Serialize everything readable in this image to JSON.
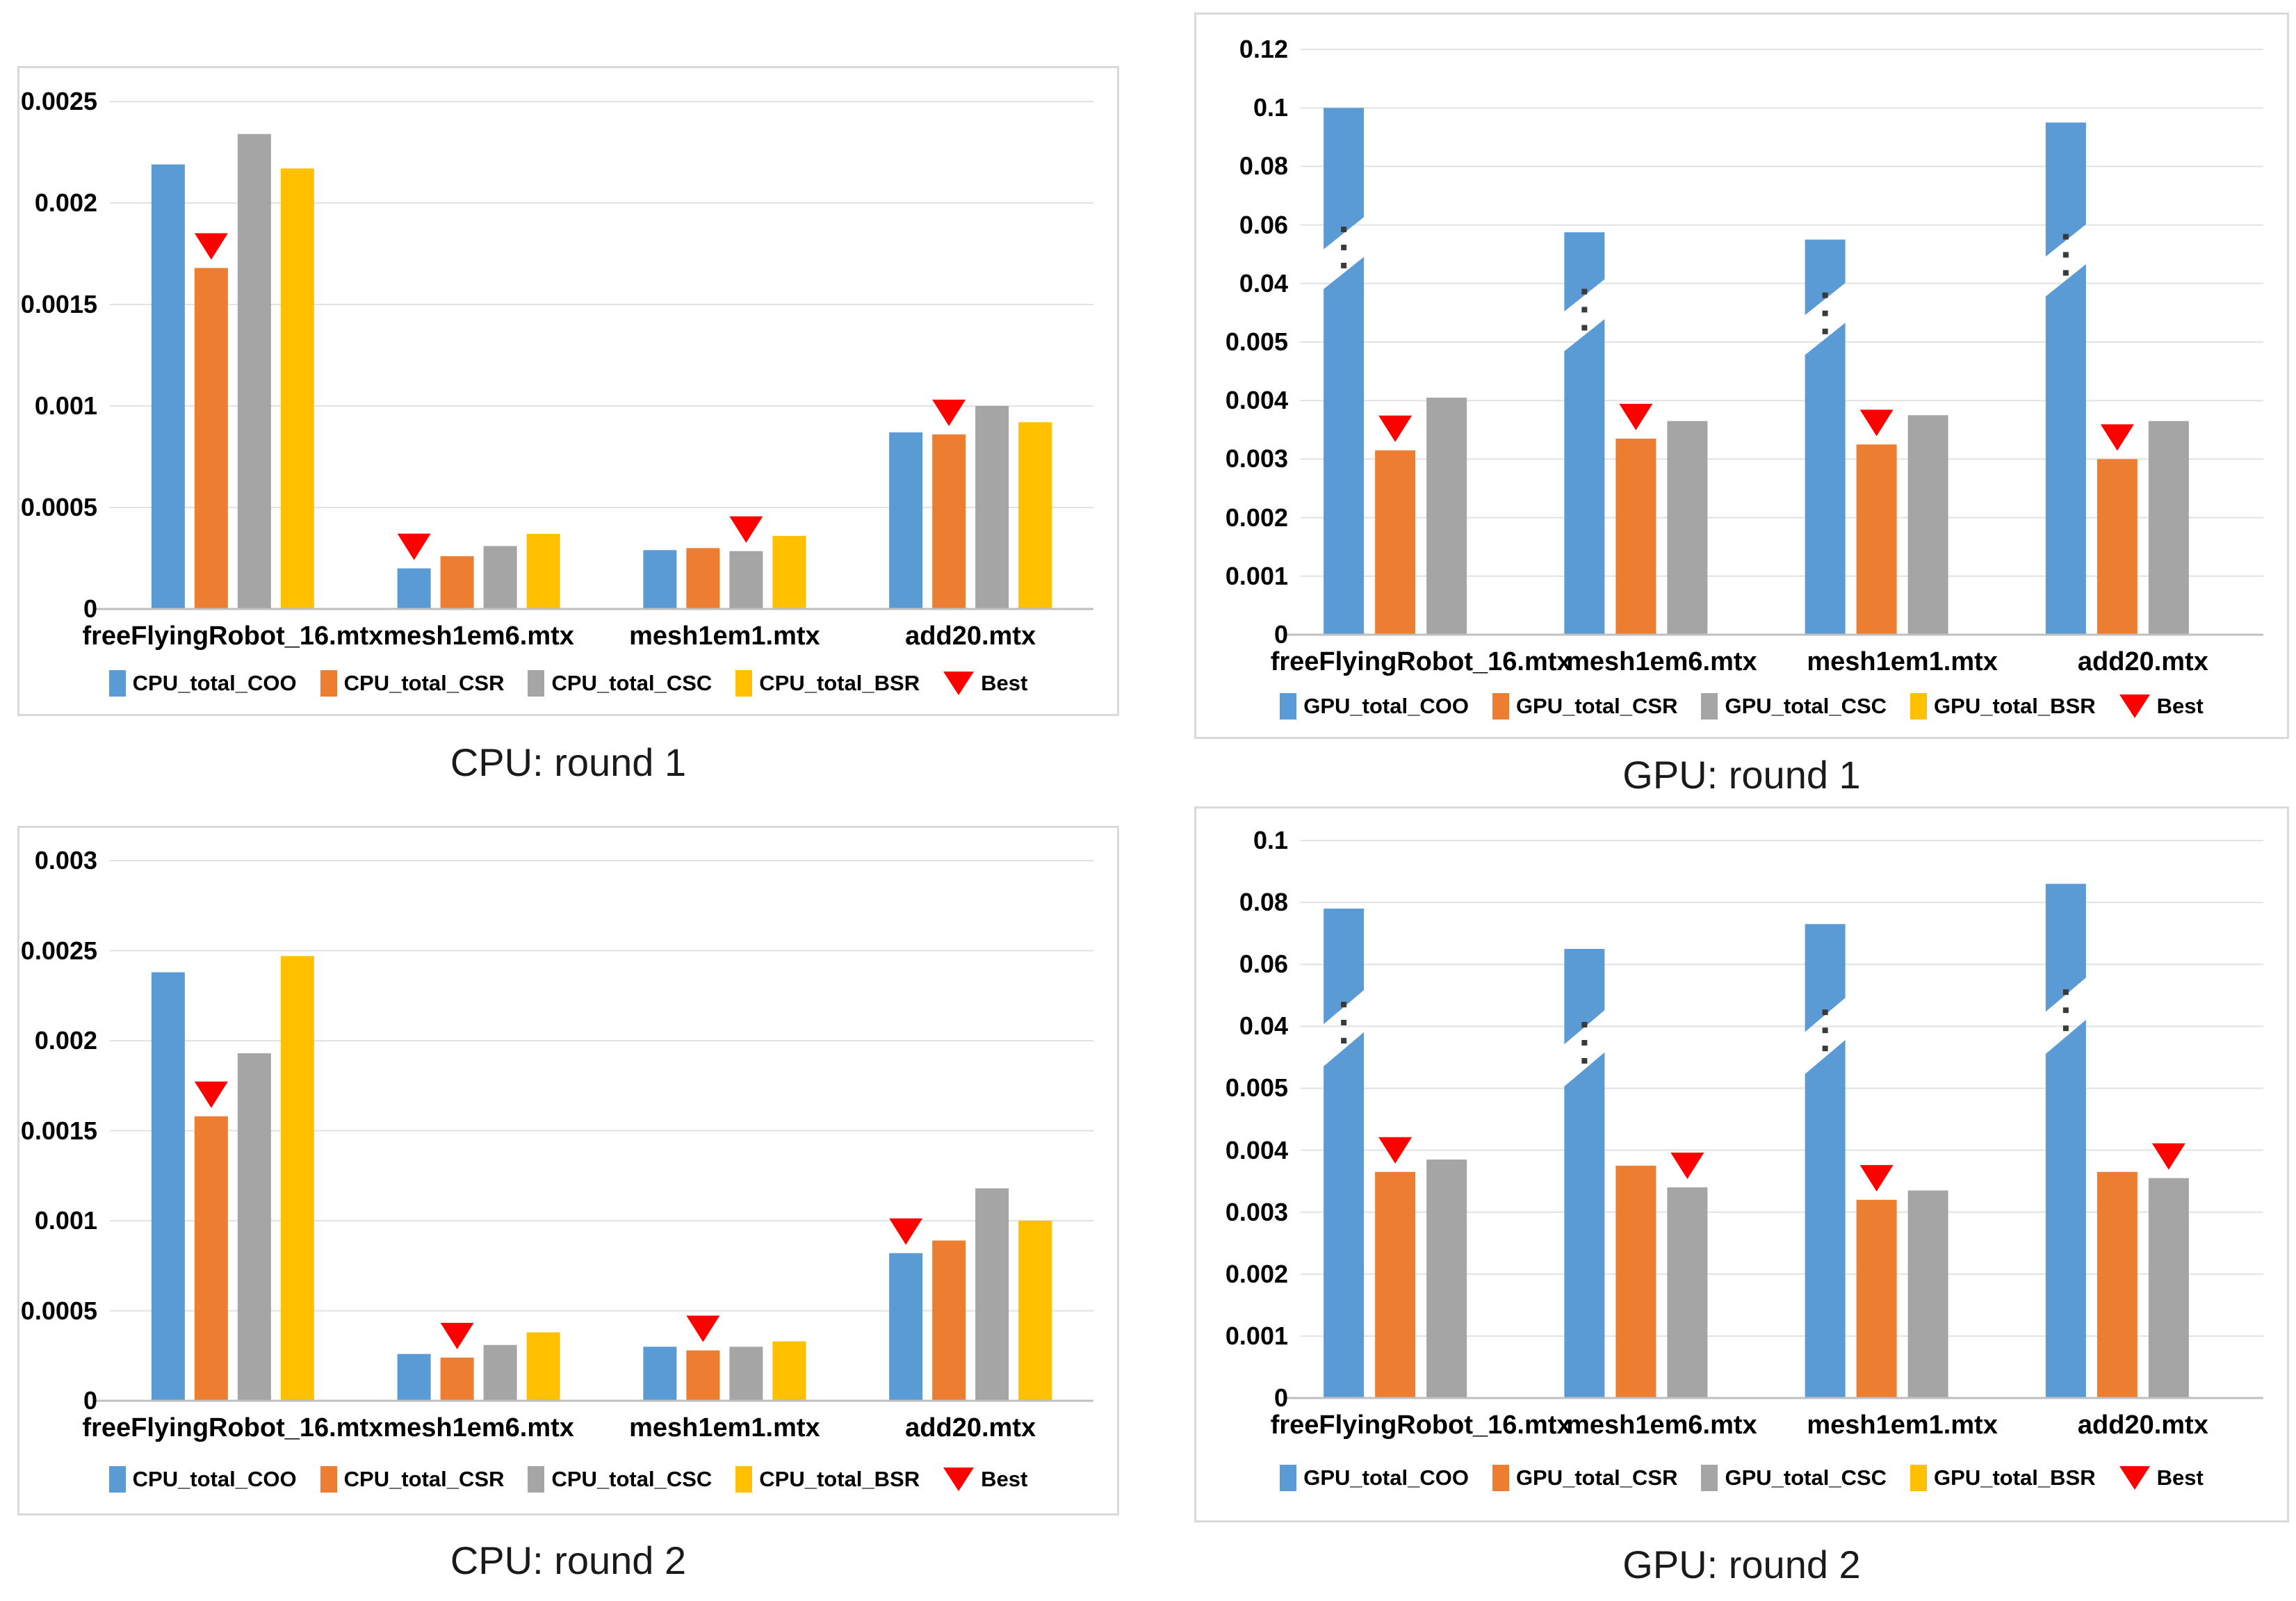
{
  "colors": {
    "coo_blue": "#5B9BD5",
    "csr_orange": "#ED7D31",
    "csc_gray": "#A5A5A5",
    "bsr_yellow": "#FFC000",
    "best_red": "#FF0000",
    "gridline": "#E2E2E2",
    "axis_line": "#BFBFBF",
    "panel_border": "#D9D9D9",
    "dots": "#3A3A3A",
    "text": "#000000",
    "caption_text": "#1A1A1A"
  },
  "chart_data": [
    {
      "id": "cpu-round-1",
      "type": "bar",
      "caption": "CPU: round 1",
      "categories": [
        "freeFlyingRobot_16.mtx",
        "mesh1em6.mtx",
        "mesh1em1.mtx",
        "add20.mtx"
      ],
      "tick_values": [
        0,
        0.0005,
        0.001,
        0.0015,
        0.002,
        0.0025
      ],
      "tick_labels": [
        "0",
        "0.0005",
        "0.001",
        "0.0015",
        "0.002",
        "0.0025"
      ],
      "broken_axis": false,
      "series": [
        {
          "name": "CPU_total_COO",
          "color_key": "coo_blue",
          "values": [
            0.00219,
            0.0002,
            0.00029,
            0.00087
          ]
        },
        {
          "name": "CPU_total_CSR",
          "color_key": "csr_orange",
          "values": [
            0.00168,
            0.00026,
            0.0003,
            0.00086
          ]
        },
        {
          "name": "CPU_total_CSC",
          "color_key": "csc_gray",
          "values": [
            0.00234,
            0.00031,
            0.000285,
            0.001
          ]
        },
        {
          "name": "CPU_total_BSR",
          "color_key": "bsr_yellow",
          "values": [
            0.00217,
            0.00037,
            0.00036,
            0.00092
          ]
        }
      ],
      "best_series_index_per_category": [
        1,
        0,
        2,
        1
      ],
      "best_label": "Best"
    },
    {
      "id": "gpu-round-1",
      "type": "bar",
      "caption": "GPU: round 1",
      "categories": [
        "freeFlyingRobot_16.mtx",
        "mesh1em6.mtx",
        "mesh1em1.mtx",
        "add20.mtx"
      ],
      "tick_values": [
        0,
        0.001,
        0.002,
        0.003,
        0.004,
        0.005,
        0.04,
        0.06,
        0.08,
        0.1,
        0.12
      ],
      "tick_labels": [
        "0",
        "0.001",
        "0.002",
        "0.003",
        "0.004",
        "0.005",
        "0.04",
        "0.06",
        "0.08",
        "0.1",
        "0.12"
      ],
      "broken_axis": true,
      "axis_break": {
        "lower_max": 0.005,
        "upper_min": 0.04
      },
      "series": [
        {
          "name": "GPU_total_COO",
          "color_key": "coo_blue",
          "values": [
            0.1,
            0.0575,
            0.055,
            0.095
          ],
          "broken_bars": true
        },
        {
          "name": "GPU_total_CSR",
          "color_key": "csr_orange",
          "values": [
            0.00315,
            0.00335,
            0.00325,
            0.003
          ]
        },
        {
          "name": "GPU_total_CSC",
          "color_key": "csc_gray",
          "values": [
            0.00405,
            0.00365,
            0.00375,
            0.00365
          ]
        },
        {
          "name": "GPU_total_BSR",
          "color_key": "bsr_yellow",
          "values": [
            null,
            null,
            null,
            null
          ]
        }
      ],
      "best_series_index_per_category": [
        1,
        1,
        1,
        1
      ],
      "best_label": "Best"
    },
    {
      "id": "cpu-round-2",
      "type": "bar",
      "caption": "CPU: round 2",
      "categories": [
        "freeFlyingRobot_16.mtx",
        "mesh1em6.mtx",
        "mesh1em1.mtx",
        "add20.mtx"
      ],
      "tick_values": [
        0,
        0.0005,
        0.001,
        0.0015,
        0.002,
        0.0025,
        0.003
      ],
      "tick_labels": [
        "0",
        "0.0005",
        "0.001",
        "0.0015",
        "0.002",
        "0.0025",
        "0.003"
      ],
      "broken_axis": false,
      "series": [
        {
          "name": "CPU_total_COO",
          "color_key": "coo_blue",
          "values": [
            0.00238,
            0.00026,
            0.0003,
            0.00082
          ]
        },
        {
          "name": "CPU_total_CSR",
          "color_key": "csr_orange",
          "values": [
            0.00158,
            0.00024,
            0.00028,
            0.00089
          ]
        },
        {
          "name": "CPU_total_CSC",
          "color_key": "csc_gray",
          "values": [
            0.00193,
            0.00031,
            0.0003,
            0.00118
          ]
        },
        {
          "name": "CPU_total_BSR",
          "color_key": "bsr_yellow",
          "values": [
            0.00247,
            0.00038,
            0.00033,
            0.001
          ]
        }
      ],
      "best_series_index_per_category": [
        1,
        1,
        1,
        0
      ],
      "best_label": "Best"
    },
    {
      "id": "gpu-round-2",
      "type": "bar",
      "caption": "GPU: round 2",
      "categories": [
        "freeFlyingRobot_16.mtx",
        "mesh1em6.mtx",
        "mesh1em1.mtx",
        "add20.mtx"
      ],
      "tick_values": [
        0,
        0.001,
        0.002,
        0.003,
        0.004,
        0.005,
        0.04,
        0.06,
        0.08,
        0.1
      ],
      "tick_labels": [
        "0",
        "0.001",
        "0.002",
        "0.003",
        "0.004",
        "0.005",
        "0.04",
        "0.06",
        "0.08",
        "0.1"
      ],
      "broken_axis": true,
      "axis_break": {
        "lower_max": 0.005,
        "upper_min": 0.04
      },
      "series": [
        {
          "name": "GPU_total_COO",
          "color_key": "coo_blue",
          "values": [
            0.078,
            0.065,
            0.073,
            0.086
          ],
          "broken_bars": true
        },
        {
          "name": "GPU_total_CSR",
          "color_key": "csr_orange",
          "values": [
            0.00365,
            0.00375,
            0.0032,
            0.00365
          ]
        },
        {
          "name": "GPU_total_CSC",
          "color_key": "csc_gray",
          "values": [
            0.00385,
            0.0034,
            0.00335,
            0.00355
          ]
        },
        {
          "name": "GPU_total_BSR",
          "color_key": "bsr_yellow",
          "values": [
            null,
            null,
            null,
            null
          ]
        }
      ],
      "best_series_index_per_category": [
        1,
        2,
        1,
        2
      ],
      "best_label": "Best"
    }
  ]
}
